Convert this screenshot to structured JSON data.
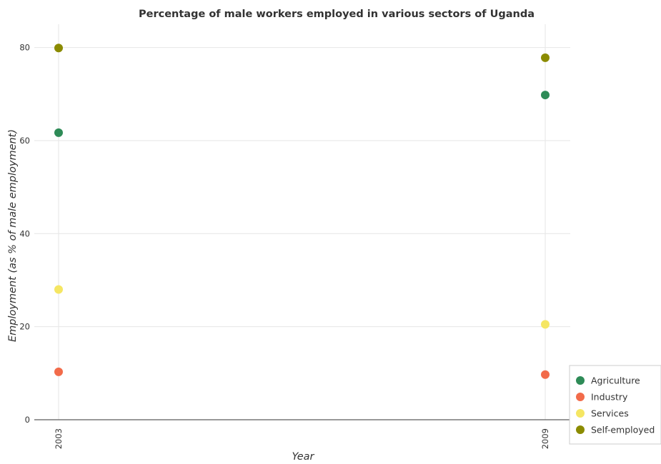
{
  "chart_data": {
    "type": "scatter",
    "title": "Percentage of male workers employed in various sectors of Uganda",
    "xlabel": "Year",
    "ylabel": "Employment (as % of male employment)",
    "categories": [
      "2003",
      "2009"
    ],
    "ylim": [
      0,
      85
    ],
    "yticks": [
      0,
      20,
      40,
      60,
      80
    ],
    "grid": true,
    "legend_position": "bottom-right",
    "series": [
      {
        "name": "Agriculture",
        "color": "#2e8b57",
        "values": [
          61.7,
          69.8
        ]
      },
      {
        "name": "Industry",
        "color": "#f26b4a",
        "values": [
          10.3,
          9.7
        ]
      },
      {
        "name": "Services",
        "color": "#f5e663",
        "values": [
          28.0,
          20.5
        ]
      },
      {
        "name": "Self-employed",
        "color": "#8b8b00",
        "values": [
          79.9,
          77.8
        ]
      }
    ]
  }
}
